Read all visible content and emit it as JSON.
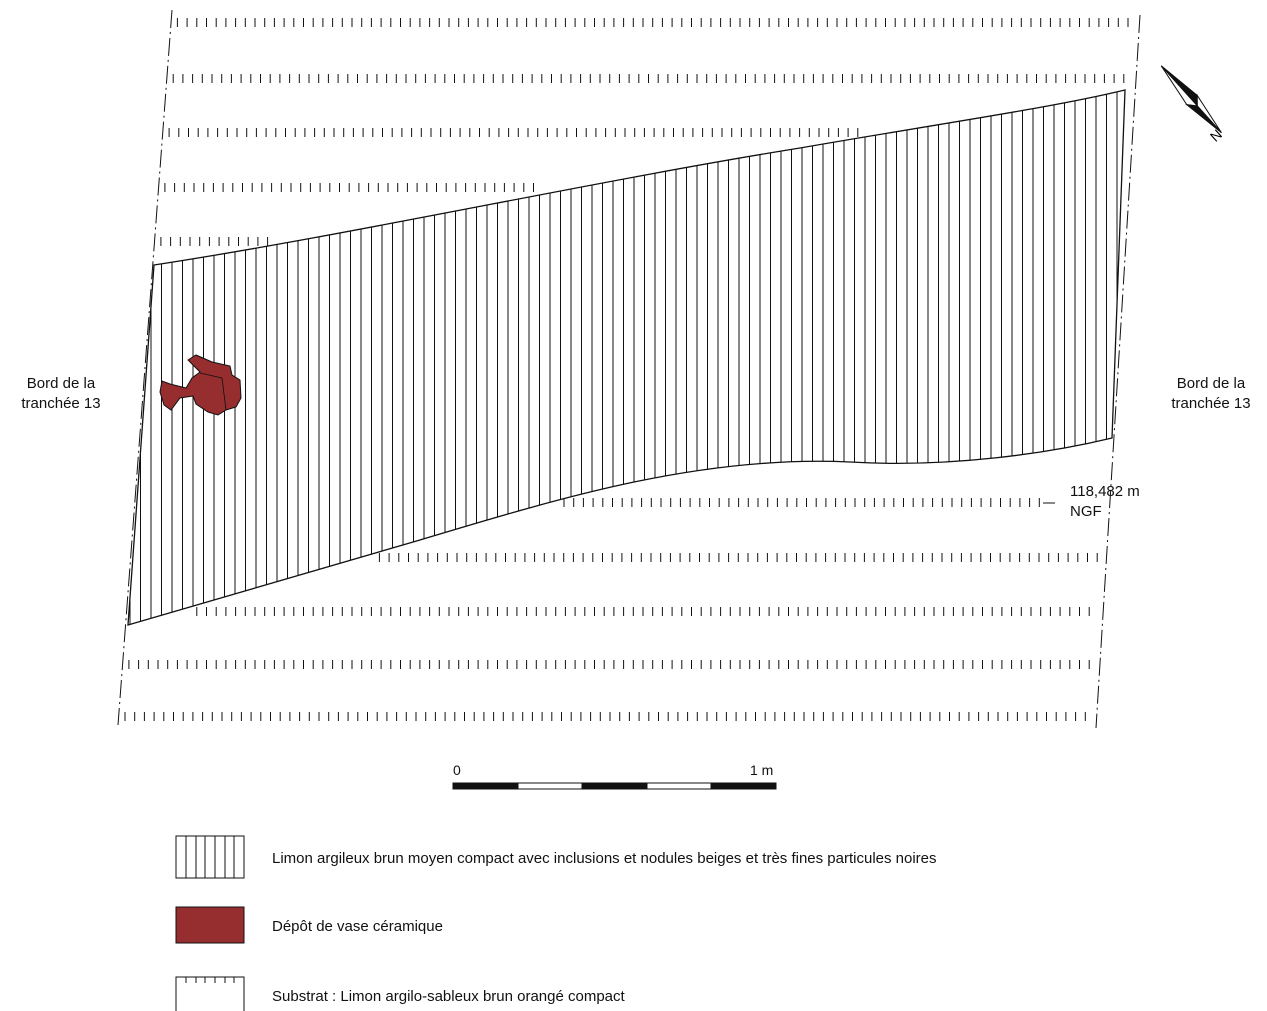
{
  "labels": {
    "left_edge": "Bord de la\ntranchée 13",
    "right_edge": "Bord de la\ntranchée 13",
    "elevation": "118,482 m\nNGF"
  },
  "north_arrow": {
    "letter": "N"
  },
  "scale_bar": {
    "start_label": "0",
    "end_label": "1 m"
  },
  "legend": {
    "items": [
      {
        "key": "fill",
        "text": "Limon argileux brun moyen compact avec inclusions et nodules beiges et très fines particules noires"
      },
      {
        "key": "vase",
        "text": "Dépôt de vase céramique"
      },
      {
        "key": "substrate",
        "text": "Substrat : Limon argilo-sableux brun orangé compact"
      }
    ]
  },
  "colors": {
    "vase": "#962d2f",
    "line": "#111111"
  },
  "icons": {
    "north": "north-arrow-icon"
  }
}
